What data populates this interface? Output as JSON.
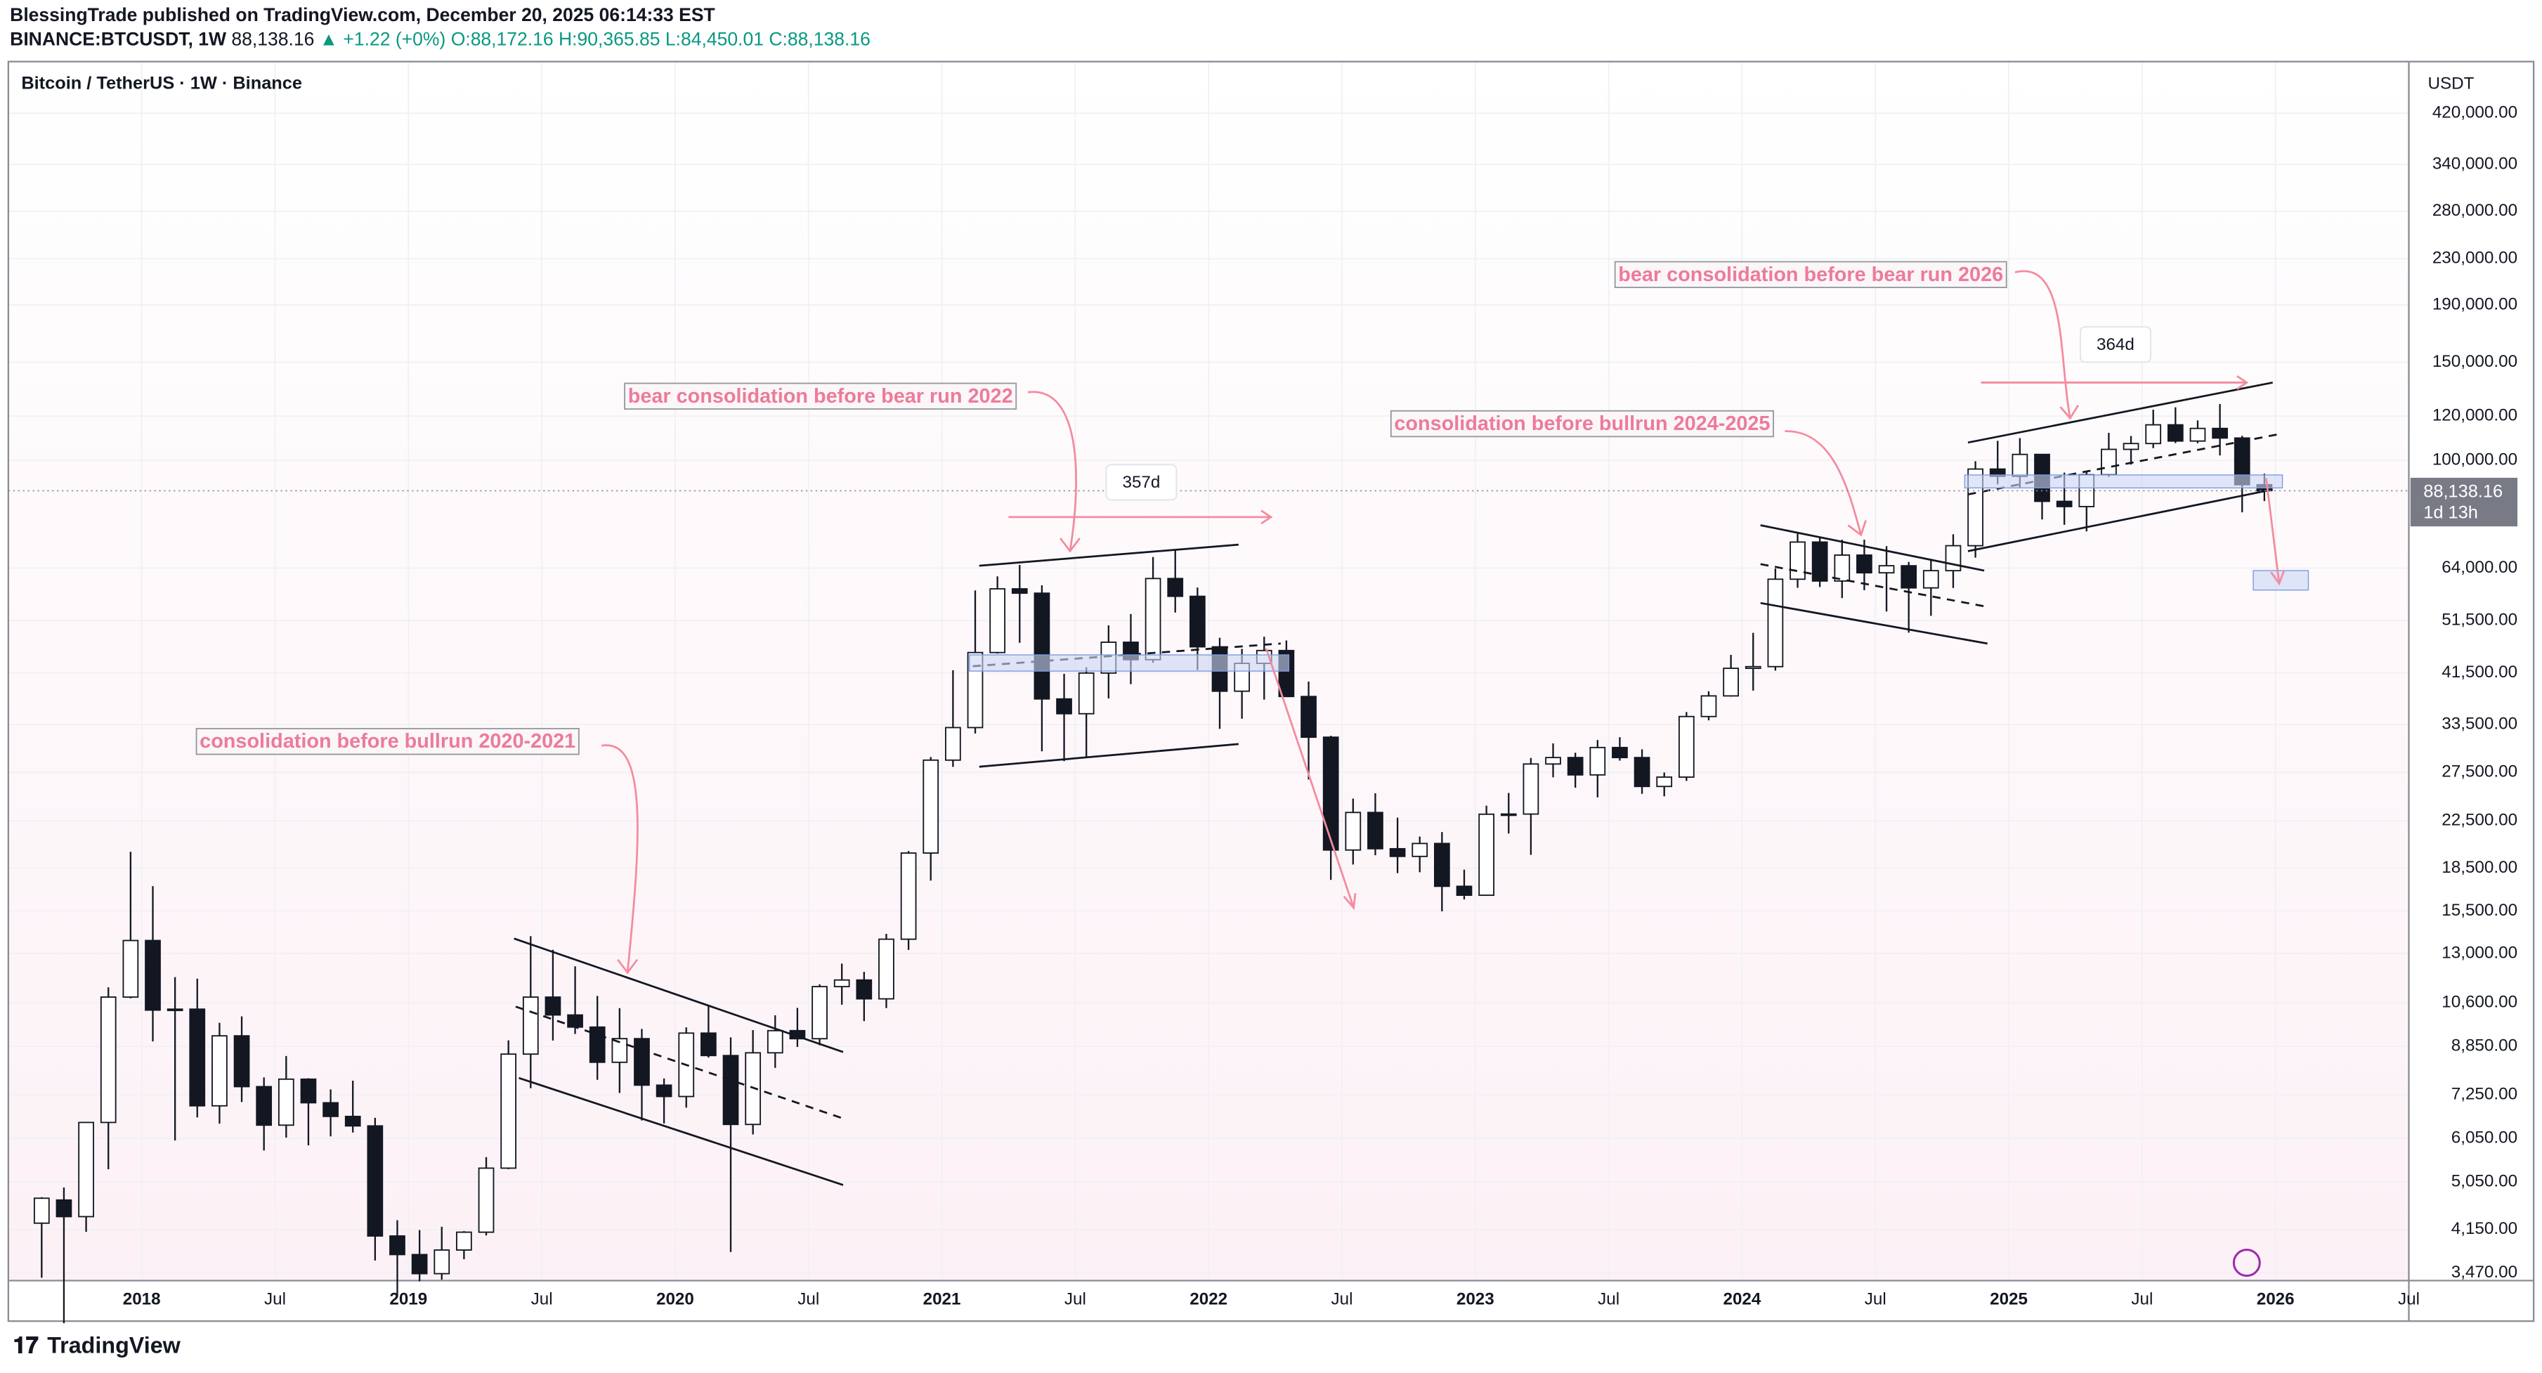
{
  "header": {
    "publisher": "BlessingTrade published on TradingView.com, December 20, 2025 06:14:33 EST",
    "symbol": "BINANCE:BTCUSDT, 1W",
    "price": "88,138.16",
    "change": "+1.22 (+0%)",
    "open": "O:88,172.16",
    "high": "H:90,365.85",
    "low": "L:84,450.01",
    "close": "C:88,138.16"
  },
  "footer": {
    "brand": "TradingView"
  },
  "chart_data": {
    "type": "candlestick",
    "title": "Bitcoin / TetherUS · 1W · Binance",
    "y_axis_label": "USDT",
    "log_scale": true,
    "last_price": {
      "value": 88138.16,
      "label": "88,138.16"
    },
    "countdown": "1d 13h",
    "annotations": [
      "consolidation before bullrun 2020-2021",
      "bear consolidation before bear run 2022",
      "consolidation before bullrun 2024-2025",
      "bear consolidation before bear run 2026",
      "357d",
      "364d"
    ],
    "up_color": "#ffffff",
    "down_color": "#131722",
    "xlim": [
      "2017-07",
      "2026-07"
    ],
    "ylim": [
      3360,
      520000
    ],
    "xticks": [
      {
        "value": "2018-01",
        "label": "2018"
      },
      {
        "value": "2018-07",
        "label": "Jul"
      },
      {
        "value": "2019-01",
        "label": "2019"
      },
      {
        "value": "2019-07",
        "label": "Jul"
      },
      {
        "value": "2020-01",
        "label": "2020"
      },
      {
        "value": "2020-07",
        "label": "Jul"
      },
      {
        "value": "2021-01",
        "label": "2021"
      },
      {
        "value": "2021-07",
        "label": "Jul"
      },
      {
        "value": "2022-01",
        "label": "2022"
      },
      {
        "value": "2022-07",
        "label": "Jul"
      },
      {
        "value": "2023-01",
        "label": "2023"
      },
      {
        "value": "2023-07",
        "label": "Jul"
      },
      {
        "value": "2024-01",
        "label": "2024"
      },
      {
        "value": "2024-07",
        "label": "Jul"
      },
      {
        "value": "2025-01",
        "label": "2025"
      },
      {
        "value": "2025-07",
        "label": "Jul"
      },
      {
        "value": "2026-01",
        "label": "2026"
      },
      {
        "value": "2026-07",
        "label": "Jul"
      }
    ],
    "yticks": [
      {
        "value": 420000,
        "label": "420,000.00"
      },
      {
        "value": 340000,
        "label": "340,000.00"
      },
      {
        "value": 280000,
        "label": "280,000.00"
      },
      {
        "value": 230000,
        "label": "230,000.00"
      },
      {
        "value": 190000,
        "label": "190,000.00"
      },
      {
        "value": 150000,
        "label": "150,000.00"
      },
      {
        "value": 120000,
        "label": "120,000.00"
      },
      {
        "value": 100000,
        "label": "100,000.00"
      },
      {
        "value": 64000,
        "label": "64,000.00"
      },
      {
        "value": 51500,
        "label": "51,500.00"
      },
      {
        "value": 41500,
        "label": "41,500.00"
      },
      {
        "value": 33500,
        "label": "33,500.00"
      },
      {
        "value": 27500,
        "label": "27,500.00"
      },
      {
        "value": 22500,
        "label": "22,500.00"
      },
      {
        "value": 18500,
        "label": "18,500.00"
      },
      {
        "value": 15500,
        "label": "15,500.00"
      },
      {
        "value": 13000,
        "label": "13,000.00"
      },
      {
        "value": 10600,
        "label": "10,600.00"
      },
      {
        "value": 8850,
        "label": "8,850.00"
      },
      {
        "value": 7250,
        "label": "7,250.00"
      },
      {
        "value": 6050,
        "label": "6,050.00"
      },
      {
        "value": 5050,
        "label": "5,050.00"
      },
      {
        "value": 4150,
        "label": "4,150.00"
      },
      {
        "value": 3470,
        "label": "3,470.00"
      }
    ],
    "x": [
      "2017-08",
      "2017-09",
      "2017-10",
      "2017-11",
      "2017-12",
      "2018-01",
      "2018-02",
      "2018-03",
      "2018-04",
      "2018-05",
      "2018-06",
      "2018-07",
      "2018-08",
      "2018-09",
      "2018-10",
      "2018-11",
      "2018-12",
      "2019-01",
      "2019-02",
      "2019-03",
      "2019-04",
      "2019-05",
      "2019-06",
      "2019-07",
      "2019-08",
      "2019-09",
      "2019-10",
      "2019-11",
      "2019-12",
      "2020-01",
      "2020-02",
      "2020-03",
      "2020-04",
      "2020-05",
      "2020-06",
      "2020-07",
      "2020-08",
      "2020-09",
      "2020-10",
      "2020-11",
      "2020-12",
      "2021-01",
      "2021-02",
      "2021-03",
      "2021-04",
      "2021-05",
      "2021-06",
      "2021-07",
      "2021-08",
      "2021-09",
      "2021-10",
      "2021-11",
      "2021-12",
      "2022-01",
      "2022-02",
      "2022-03",
      "2022-04",
      "2022-05",
      "2022-06",
      "2022-07",
      "2022-08",
      "2022-09",
      "2022-10",
      "2022-11",
      "2022-12",
      "2023-01",
      "2023-02",
      "2023-03",
      "2023-04",
      "2023-05",
      "2023-06",
      "2023-07",
      "2023-08",
      "2023-09",
      "2023-10",
      "2023-11",
      "2023-12",
      "2024-01",
      "2024-02",
      "2024-03",
      "2024-04",
      "2024-05",
      "2024-06",
      "2024-07",
      "2024-08",
      "2024-09",
      "2024-10",
      "2024-11",
      "2024-12",
      "2025-01",
      "2025-02",
      "2025-03",
      "2025-04",
      "2025-05",
      "2025-06",
      "2025-07",
      "2025-08",
      "2025-09",
      "2025-10",
      "2025-11",
      "2025-12"
    ],
    "open": [
      4261,
      4689,
      4378,
      6463,
      10855,
      13716,
      10285,
      10326,
      6923,
      9247,
      7495,
      6391,
      7730,
      7011,
      6626,
      6371,
      4041,
      3742,
      3458,
      3813,
      4105,
      5350,
      8574,
      10854,
      10080,
      9588,
      8289,
      9140,
      7541,
      7195,
      9352,
      8523,
      6410,
      8620,
      9448,
      9138,
      11335,
      11649,
      10776,
      13791,
      19695,
      28923,
      33092,
      45135,
      58740,
      57694,
      37253,
      35045,
      41461,
      47100,
      43824,
      61300,
      56950,
      46216,
      38466,
      43160,
      45510,
      37630,
      31801,
      19942,
      23293,
      20050,
      19423,
      20490,
      17164,
      16542,
      23125,
      23141,
      28465,
      29233,
      27210,
      30472,
      29232,
      25940,
      26963,
      34640,
      37724,
      42284,
      42580,
      61130,
      71280,
      60672,
      67540,
      62772,
      64628,
      58974,
      63328,
      70215,
      96407,
      93576,
      102429,
      84350,
      82550,
      94172,
      104591,
      107135,
      115764,
      108246,
      114049,
      109608,
      90360
    ],
    "high": [
      4745,
      4939,
      6470,
      11300,
      19798,
      17176,
      11786,
      11710,
      9759,
      10020,
      7786,
      8507,
      7760,
      7410,
      7680,
      6588,
      4312,
      4140,
      4198,
      4123,
      5600,
      9074,
      13970,
      13200,
      12325,
      10905,
      10370,
      9513,
      7750,
      9578,
      10500,
      9188,
      9468,
      10067,
      10380,
      11444,
      12468,
      12050,
      14100,
      19863,
      29300,
      41950,
      58352,
      61844,
      64854,
      59592,
      41330,
      42448,
      50500,
      52920,
      67000,
      69000,
      59053,
      47990,
      45821,
      48189,
      47444,
      40023,
      31986,
      24668,
      25211,
      22799,
      21085,
      21480,
      18387,
      23960,
      25250,
      29184,
      31000,
      29820,
      31431,
      31804,
      30244,
      27483,
      35280,
      38450,
      44700,
      48970,
      63913,
      73777,
      72797,
      71979,
      71997,
      70079,
      65660,
      66498,
      73620,
      99588,
      108353,
      109588,
      102500,
      95000,
      95758,
      111980,
      110530,
      123218,
      124474,
      117900,
      126199,
      110600,
      94588
    ],
    "low": [
      3400,
      2817,
      4110,
      5325,
      10800,
      9035,
      6000,
      6600,
      6430,
      7032,
      5755,
      6070,
      5880,
      6100,
      6200,
      3652,
      3156,
      3349,
      3373,
      3670,
      4050,
      5328,
      7444,
      9069,
      9320,
      7710,
      7300,
      6515,
      6435,
      6871,
      8450,
      3782,
      6150,
      8100,
      8833,
      8893,
      10518,
      9825,
      10374,
      13195,
      17572,
      28130,
      32296,
      44950,
      47000,
      30000,
      28805,
      29278,
      37332,
      39600,
      43283,
      53256,
      42000,
      32917,
      34322,
      37155,
      37578,
      26700,
      17622,
      18781,
      19520,
      18125,
      18190,
      15476,
      16256,
      16499,
      21351,
      19549,
      26942,
      25811,
      24800,
      28861,
      25166,
      24901,
      26538,
      34097,
      37615,
      38555,
      41884,
      59005,
      59191,
      56552,
      58402,
      53485,
      49000,
      52550,
      58946,
      66835,
      90500,
      89256,
      78258,
      76555,
      74508,
      93346,
      98200,
      105100,
      107350,
      107255,
      102000,
      80600,
      84450
    ],
    "close": [
      4724,
      4378,
      6463,
      10855,
      13716,
      10285,
      10326,
      6923,
      9247,
      7495,
      6391,
      7730,
      7011,
      6626,
      6371,
      4041,
      3742,
      3458,
      3813,
      4105,
      5350,
      8574,
      10854,
      10080,
      9588,
      8289,
      9140,
      7541,
      7195,
      9352,
      8523,
      6410,
      8620,
      9448,
      9138,
      11335,
      11649,
      10776,
      13791,
      19695,
      28923,
      33092,
      45135,
      58740,
      57694,
      37253,
      35045,
      41461,
      47100,
      43824,
      61300,
      56950,
      46216,
      38466,
      43160,
      45510,
      37630,
      31801,
      19942,
      23293,
      20050,
      19423,
      20490,
      17164,
      16542,
      23125,
      23141,
      28465,
      29233,
      27210,
      30472,
      29232,
      25940,
      26963,
      34640,
      37724,
      42284,
      42580,
      61130,
      71280,
      60672,
      67540,
      62772,
      64628,
      58974,
      63328,
      70215,
      96407,
      93576,
      102429,
      84350,
      82550,
      94172,
      104591,
      107135,
      115764,
      108246,
      114049,
      109608,
      90360,
      88138
    ]
  }
}
